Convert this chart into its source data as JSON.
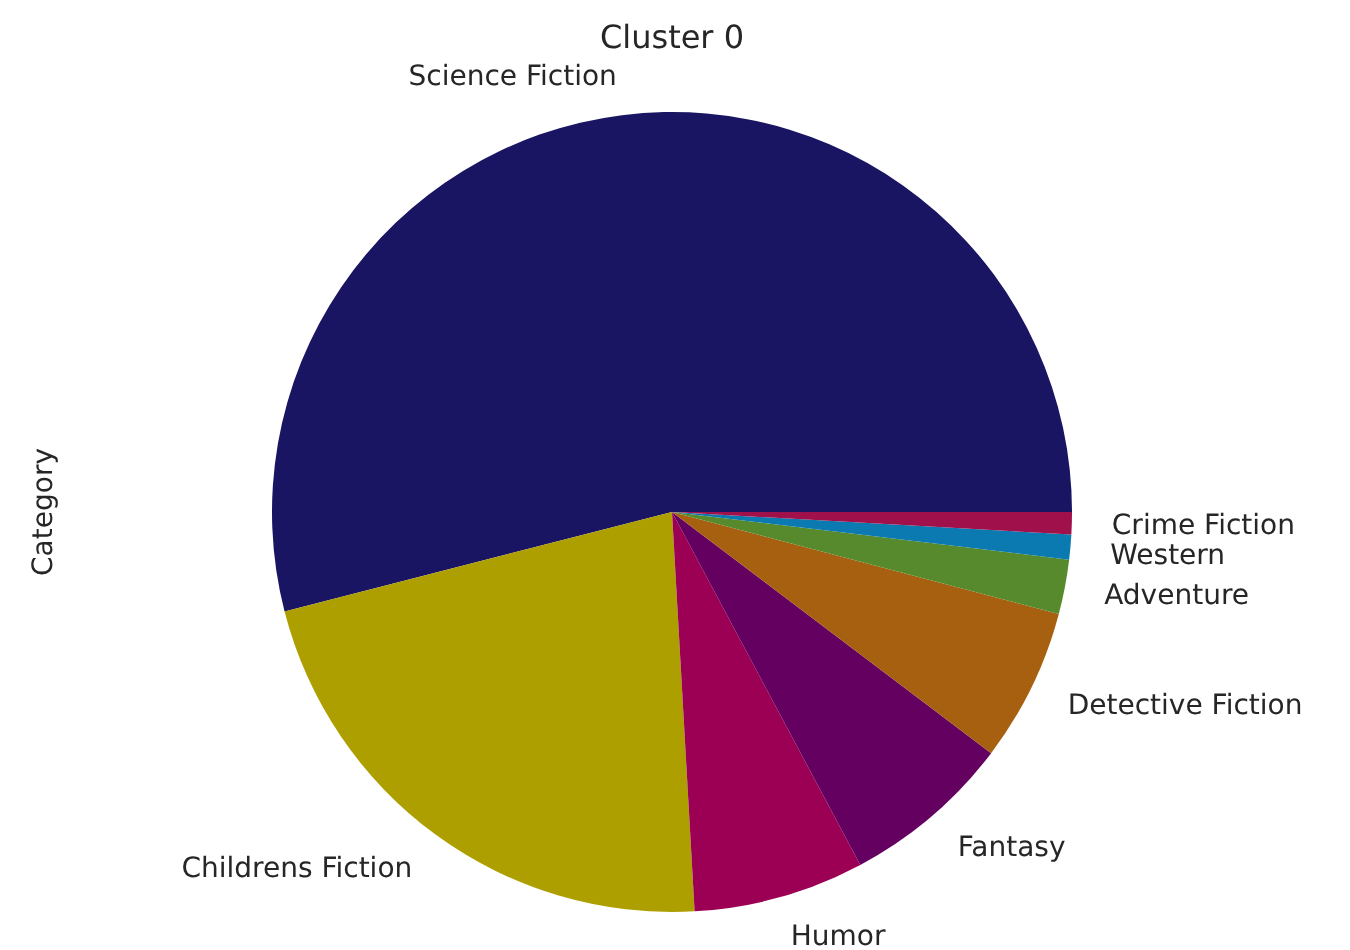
{
  "chart_data": {
    "type": "pie",
    "title": "Cluster 0",
    "ylabel": "Category",
    "categories": [
      "Science Fiction",
      "Childrens Fiction",
      "Humor",
      "Fantasy",
      "Detective Fiction",
      "Adventure",
      "Western",
      "Crime Fiction"
    ],
    "values": [
      54.0,
      21.9,
      6.9,
      6.9,
      6.2,
      2.2,
      1.0,
      0.9
    ],
    "colors": [
      "#1a1562",
      "#ae9f00",
      "#9c0055",
      "#640060",
      "#a66010",
      "#578a2c",
      "#0a7ab0",
      "#a0104a"
    ]
  }
}
